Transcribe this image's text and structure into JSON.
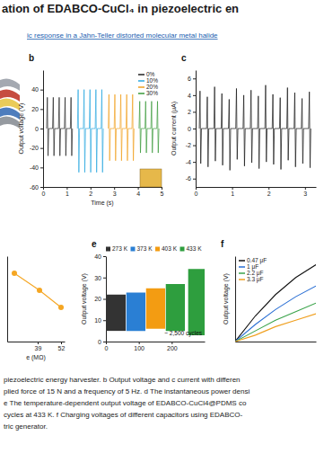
{
  "header": {
    "title": "ation of EDABCO-CuCl₄ in piezoelectric en",
    "subtitle": "ic response in a Jahn-Teller distorted molecular metal halide"
  },
  "chart_data": [
    {
      "type": "line",
      "title": "b",
      "xlabel": "Time (s)",
      "ylabel": "Output voltage (V)",
      "xlim": [
        0,
        5
      ],
      "ylim": [
        -60,
        60
      ],
      "xticks": [
        0,
        1,
        2,
        3,
        4,
        5
      ],
      "yticks": [
        -60,
        -40,
        -20,
        0,
        20,
        40
      ],
      "legend": "upper right",
      "series": [
        {
          "name": "0%",
          "color": "#222222",
          "x": [
            0.15,
            0.18,
            0.21,
            0.24,
            0.4,
            0.43,
            0.46,
            0.49,
            0.65,
            0.68,
            0.71,
            0.74,
            0.9,
            0.93,
            0.96,
            0.99,
            1.15,
            1.18,
            1.21,
            1.24
          ],
          "values": [
            0,
            32,
            -28,
            0,
            0,
            32,
            -28,
            0,
            0,
            32,
            -28,
            0,
            0,
            32,
            -28,
            0,
            0,
            32,
            -28,
            0
          ]
        },
        {
          "name": "10%",
          "color": "#29a8e0",
          "x": [
            1.45,
            1.48,
            1.51,
            1.54,
            1.7,
            1.73,
            1.76,
            1.79,
            1.95,
            1.98,
            2.01,
            2.04,
            2.2,
            2.23,
            2.26,
            2.29,
            2.45,
            2.48,
            2.51,
            2.54
          ],
          "values": [
            0,
            40,
            -45,
            0,
            0,
            40,
            -45,
            0,
            0,
            40,
            -45,
            0,
            0,
            40,
            -45,
            0,
            0,
            40,
            -45,
            0
          ]
        },
        {
          "name": "20%",
          "color": "#f0a020",
          "x": [
            2.75,
            2.78,
            2.81,
            2.84,
            3.0,
            3.03,
            3.06,
            3.09,
            3.25,
            3.28,
            3.31,
            3.34,
            3.5,
            3.53,
            3.56,
            3.59,
            3.75,
            3.78,
            3.81,
            3.84
          ],
          "values": [
            0,
            35,
            -33,
            0,
            0,
            35,
            -33,
            0,
            0,
            35,
            -33,
            0,
            0,
            35,
            -33,
            0,
            0,
            35,
            -33,
            0
          ]
        },
        {
          "name": "30%",
          "color": "#3a9a3a",
          "x": [
            4.05,
            4.08,
            4.11,
            4.14,
            4.3,
            4.33,
            4.36,
            4.39,
            4.55,
            4.58,
            4.61,
            4.64,
            4.8,
            4.83,
            4.86,
            4.89
          ],
          "values": [
            0,
            28,
            -25,
            0,
            0,
            28,
            -25,
            0,
            0,
            28,
            -25,
            0,
            0,
            28,
            -25,
            0
          ]
        }
      ]
    },
    {
      "type": "line",
      "title": "c",
      "ylabel": "Output current (μA)",
      "xlim": [
        0,
        3.3
      ],
      "ylim": [
        -7,
        7
      ],
      "xticks": [
        0,
        1,
        2,
        3
      ],
      "yticks": [
        -6,
        -4,
        -2,
        0,
        2,
        4,
        6
      ],
      "series": [
        {
          "color": "#111111",
          "x": [
            0.1,
            0.12,
            0.14,
            0.16,
            0.3,
            0.32,
            0.34,
            0.36,
            0.5,
            0.52,
            0.54,
            0.56,
            0.7,
            0.72,
            0.74,
            0.76,
            0.9,
            0.92,
            0.94,
            0.96,
            1.1,
            1.12,
            1.14,
            1.16,
            1.3,
            1.32,
            1.34,
            1.36,
            1.5,
            1.52,
            1.54,
            1.56,
            1.7,
            1.72,
            1.74,
            1.76,
            1.9,
            1.92,
            1.94,
            1.96,
            2.1,
            2.12,
            2.14,
            2.16,
            2.3,
            2.32,
            2.34,
            2.36,
            2.5,
            2.52,
            2.54,
            2.56,
            2.7,
            2.72,
            2.74,
            2.76,
            2.9,
            2.92,
            2.94,
            2.96,
            3.1,
            3.12,
            3.14,
            3.16
          ],
          "values": [
            0,
            4.5,
            -4.2,
            0,
            0,
            3.8,
            -4.6,
            0,
            0,
            5,
            -3.9,
            0,
            0,
            4.2,
            -4.4,
            0,
            0,
            3.5,
            -5,
            0,
            0,
            4.8,
            -3.7,
            0,
            0,
            4,
            -4.5,
            0,
            0,
            4.6,
            -4.1,
            0,
            0,
            3.9,
            -4.8,
            0,
            0,
            5.2,
            -4,
            0,
            0,
            4.1,
            -4.3,
            0,
            0,
            3.7,
            -4.9,
            0,
            0,
            4.9,
            -3.8,
            0,
            0,
            4.3,
            -4.6,
            0,
            0,
            3.6,
            -4.2,
            0,
            0,
            4.4,
            -4.7,
            0
          ]
        }
      ]
    },
    {
      "type": "line",
      "xlabel": "e (MΩ)",
      "xlim": [
        22,
        54
      ],
      "ylim": [
        0,
        10
      ],
      "xticks": [
        39,
        52
      ],
      "tick_labels": "x",
      "series": [
        {
          "color": "#f5a623",
          "marker": "circle",
          "x": [
            26,
            40,
            52
          ],
          "values": [
            8,
            6,
            4
          ]
        }
      ]
    },
    {
      "type": "area",
      "title": "e",
      "ylabel": "Output voltage (V)",
      "xlim": [
        0,
        300
      ],
      "ylim": [
        0,
        40
      ],
      "xticks": [
        0,
        100,
        200
      ],
      "yticks": [
        0,
        10,
        20,
        30,
        40
      ],
      "legend": "top",
      "annotations": [
        "~ 2,500 cycles"
      ],
      "series": [
        {
          "name": "273 K",
          "color": "#333333",
          "x": [
            0,
            60
          ],
          "values": [
            22,
            22
          ],
          "low": [
            5,
            5
          ]
        },
        {
          "name": "373 K",
          "color": "#2a7fd4",
          "x": [
            62,
            120
          ],
          "values": [
            23,
            23
          ],
          "low": [
            5,
            5
          ]
        },
        {
          "name": "403 K",
          "color": "#f39c12",
          "x": [
            122,
            180
          ],
          "values": [
            25,
            25
          ],
          "low": [
            6,
            6
          ]
        },
        {
          "name": "433 K",
          "color": "#2e9e3e",
          "x": [
            182,
            240,
            245,
            250,
            300
          ],
          "values": [
            27,
            27,
            null,
            34,
            34
          ],
          "low": [
            5,
            5,
            null,
            3,
            3
          ]
        }
      ]
    },
    {
      "type": "line",
      "title": "f",
      "ylabel": "Output voltage (V)",
      "xlim": [
        0,
        4
      ],
      "ylim": [
        0,
        4
      ],
      "tick_labels": false,
      "legend": "upper left",
      "series": [
        {
          "name": "0.47 μF",
          "color": "#111111",
          "x": [
            0,
            1,
            2,
            3,
            4
          ],
          "values": [
            0,
            1.2,
            2.2,
            3,
            3.6
          ]
        },
        {
          "name": "1 μF",
          "color": "#2a6fd4",
          "x": [
            0,
            1,
            2,
            3,
            4
          ],
          "values": [
            0,
            0.8,
            1.5,
            2.1,
            2.6
          ]
        },
        {
          "name": "2.2 μF",
          "color": "#3aa34a",
          "x": [
            0,
            1,
            2,
            3,
            4
          ],
          "values": [
            0,
            0.5,
            1,
            1.4,
            1.8
          ]
        },
        {
          "name": "3.3 μF",
          "color": "#f0a020",
          "x": [
            0,
            1,
            2,
            3,
            4
          ],
          "values": [
            0,
            0.3,
            0.7,
            1,
            1.3
          ]
        }
      ]
    }
  ],
  "caption": [
    "piezoelectric energy harvester. b Output voltage and c current with differen",
    "plied force of 15 N and a frequency of 5 Hz. d The instantaneous power densi",
    "e The temperature-dependent output voltage of EDABCO-CuCl4@PDMS co",
    "cycles at 433 K. f Charging voltages of different capacitors using EDABCO-",
    "tric generator."
  ]
}
